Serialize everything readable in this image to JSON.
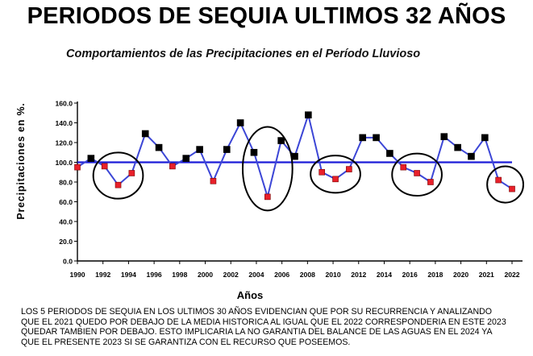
{
  "title": "PERIODOS DE SEQUIA ULTIMOS 32 AÑOS",
  "caption": [
    "LOS 5 PERIODOS DE SEQUIA EN LOS ULTIMOS 30 AÑOS EVIDENCIAN QUE POR SU RECURRENCIA Y ANALIZANDO",
    "QUE EL 2021 QUEDO POR DEBAJO DE LA MEDIA HISTORICA AL IGUAL QUE EL 2022 CORRESPONDERIA EN ESTE 2023",
    "QUEDAR TAMBIEN POR DEBAJO. ESTO IMPLICARIA LA NO GARANTIA DEL BALANCE DE LAS AGUAS EN EL 2024 YA",
    "QUE EL PRESENTE 2023 SI SE GARANTIZA CON EL RECURSO QUE POSEEMOS."
  ],
  "chart_data": {
    "type": "line",
    "title": "Comportamientos de las Precipitaciones en el Período Lluvioso",
    "xlabel": "Años",
    "ylabel": "Precipitaciones en %.",
    "ylim": [
      0,
      160
    ],
    "yticks": [
      "0.0",
      "20.0",
      "40.0",
      "60.0",
      "80.0",
      "100.0",
      "120.0",
      "140.0",
      "160.0"
    ],
    "xticks": [
      "1990",
      "1992",
      "1994",
      "1996",
      "1998",
      "2000",
      "2002",
      "2004",
      "2006",
      "2008",
      "2010",
      "2012",
      "2014",
      "2016",
      "2018",
      "2020",
      "2021",
      "2022"
    ],
    "grid": false,
    "reference_line": 100,
    "colors": {
      "line": "#3c46d6",
      "above": "#000000",
      "below": "#e8202a",
      "reference": "#1c1cd8"
    },
    "points": [
      {
        "x": 1990,
        "y": 95,
        "below": true
      },
      {
        "x": 1991,
        "y": 104,
        "below": false
      },
      {
        "x": 1992,
        "y": 96,
        "below": true
      },
      {
        "x": 1993,
        "y": 77,
        "below": true
      },
      {
        "x": 1994,
        "y": 89,
        "below": true
      },
      {
        "x": 1995,
        "y": 129,
        "below": false
      },
      {
        "x": 1996,
        "y": 115,
        "below": false
      },
      {
        "x": 1997,
        "y": 96,
        "below": true
      },
      {
        "x": 1998,
        "y": 104,
        "below": false
      },
      {
        "x": 1999,
        "y": 113,
        "below": false
      },
      {
        "x": 2000,
        "y": 81,
        "below": true
      },
      {
        "x": 2001,
        "y": 113,
        "below": false
      },
      {
        "x": 2002,
        "y": 140,
        "below": false
      },
      {
        "x": 2003,
        "y": 110,
        "below": false
      },
      {
        "x": 2004,
        "y": 65,
        "below": true
      },
      {
        "x": 2005,
        "y": 122,
        "below": false
      },
      {
        "x": 2006,
        "y": 106,
        "below": false
      },
      {
        "x": 2007,
        "y": 148,
        "below": false
      },
      {
        "x": 2008,
        "y": 90,
        "below": true
      },
      {
        "x": 2009,
        "y": 83,
        "below": true
      },
      {
        "x": 2010,
        "y": 93,
        "below": true
      },
      {
        "x": 2011,
        "y": 125,
        "below": false
      },
      {
        "x": 2012,
        "y": 125,
        "below": false
      },
      {
        "x": 2013,
        "y": 109,
        "below": false
      },
      {
        "x": 2014,
        "y": 95,
        "below": true
      },
      {
        "x": 2015,
        "y": 89,
        "below": true
      },
      {
        "x": 2016,
        "y": 80,
        "below": true
      },
      {
        "x": 2017,
        "y": 126,
        "below": false
      },
      {
        "x": 2018,
        "y": 115,
        "below": false
      },
      {
        "x": 2019,
        "y": 106,
        "below": false
      },
      {
        "x": 2020,
        "y": 125,
        "below": false
      },
      {
        "x": 2021,
        "y": 82,
        "below": true
      },
      {
        "x": 2022,
        "y": 73,
        "below": true
      }
    ],
    "drought_periods": [
      {
        "from": 1992,
        "to": 1994
      },
      {
        "from": 2003,
        "to": 2005
      },
      {
        "from": 2008,
        "to": 2010
      },
      {
        "from": 2014,
        "to": 2016
      },
      {
        "from": 2021,
        "to": 2022
      }
    ]
  }
}
